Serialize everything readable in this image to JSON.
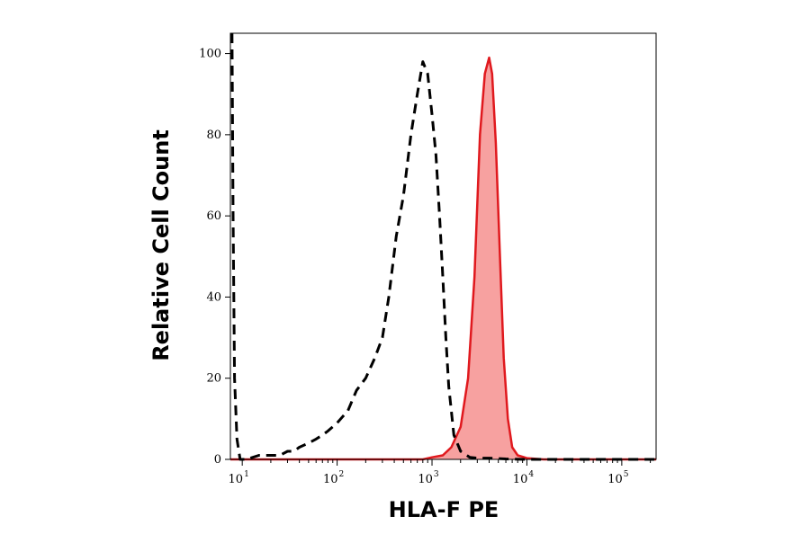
{
  "chart_data": {
    "type": "area",
    "xlabel": "HLA-F PE",
    "ylabel": "Relative Cell Count",
    "x_scale": "log",
    "xlim": [
      7.5,
      230000
    ],
    "ylim": [
      0,
      105
    ],
    "x_ticks": [
      {
        "value": 10,
        "base": "10",
        "exp": "1"
      },
      {
        "value": 100,
        "base": "10",
        "exp": "2"
      },
      {
        "value": 1000,
        "base": "10",
        "exp": "3"
      },
      {
        "value": 10000,
        "base": "10",
        "exp": "4"
      },
      {
        "value": 100000,
        "base": "10",
        "exp": "5"
      }
    ],
    "y_ticks": [
      0,
      20,
      40,
      60,
      80,
      100
    ],
    "grid": false,
    "legend": "none",
    "series": [
      {
        "style": "dashed",
        "color": "#000000",
        "fill": "none",
        "x": [
          7.8,
          8,
          8.3,
          8.8,
          9.5,
          11,
          15,
          20,
          25,
          30,
          35,
          40,
          50,
          60,
          70,
          80,
          100,
          130,
          160,
          200,
          250,
          300,
          350,
          420,
          500,
          600,
          700,
          800,
          900,
          1000,
          1100,
          1200,
          1300,
          1400,
          1500,
          1700,
          2000,
          2500,
          3000,
          4000,
          6000,
          10000,
          30000,
          230000
        ],
        "y": [
          105,
          60,
          20,
          5,
          0,
          0,
          1,
          1,
          1,
          2,
          2,
          3,
          4,
          5,
          6,
          7,
          9,
          12,
          17,
          20,
          25,
          30,
          40,
          55,
          65,
          80,
          90,
          98,
          95,
          85,
          75,
          60,
          45,
          30,
          18,
          6,
          2,
          0.5,
          0.3,
          0.3,
          0.1,
          0,
          0,
          0
        ]
      },
      {
        "style": "solid",
        "color": "#e0191e",
        "fill": "#f7a1a0",
        "x": [
          7.5,
          800,
          1000,
          1300,
          1600,
          2000,
          2400,
          2800,
          3200,
          3600,
          4000,
          4300,
          4700,
          5200,
          5700,
          6300,
          7000,
          8000,
          10000,
          15000,
          230000
        ],
        "y": [
          0,
          0,
          0.5,
          1,
          3,
          8,
          20,
          45,
          80,
          95,
          99,
          95,
          78,
          50,
          25,
          10,
          3,
          1,
          0.3,
          0,
          0
        ]
      }
    ]
  }
}
